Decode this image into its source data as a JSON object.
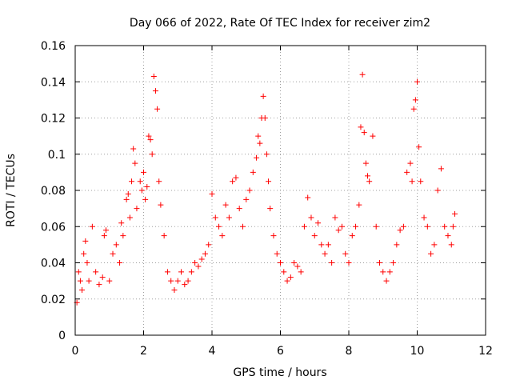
{
  "chart_data": {
    "type": "scatter",
    "title": "Day 066 of 2022, Rate Of TEC Index for receiver zim2",
    "xlabel": "GPS time / hours",
    "ylabel": "ROTI / TECUs",
    "xlim": [
      0,
      12
    ],
    "ylim": [
      0,
      0.16
    ],
    "x_ticks": [
      "0",
      "2",
      "4",
      "6",
      "8",
      "10",
      "12"
    ],
    "y_ticks": [
      "0",
      "0.02",
      "0.04",
      "0.06",
      "0.08",
      "0.1",
      "0.12",
      "0.14",
      "0.16"
    ],
    "grid": true,
    "marker": "plus",
    "color": "#ff0000",
    "series": [
      {
        "name": "ROTI",
        "x": [
          0.05,
          0.1,
          0.15,
          0.2,
          0.25,
          0.3,
          0.35,
          0.4,
          0.5,
          0.6,
          0.7,
          0.8,
          0.85,
          0.9,
          1.0,
          1.1,
          1.2,
          1.3,
          1.35,
          1.4,
          1.5,
          1.55,
          1.6,
          1.65,
          1.7,
          1.75,
          1.8,
          1.9,
          1.95,
          2.0,
          2.05,
          2.1,
          2.15,
          2.2,
          2.25,
          2.3,
          2.35,
          2.4,
          2.45,
          2.5,
          2.6,
          2.7,
          2.8,
          2.9,
          3.0,
          3.1,
          3.2,
          3.3,
          3.4,
          3.5,
          3.6,
          3.7,
          3.8,
          3.9,
          4.0,
          4.1,
          4.2,
          4.3,
          4.4,
          4.5,
          4.6,
          4.7,
          4.8,
          4.9,
          5.0,
          5.1,
          5.2,
          5.3,
          5.35,
          5.4,
          5.45,
          5.5,
          5.55,
          5.6,
          5.65,
          5.7,
          5.8,
          5.9,
          6.0,
          6.1,
          6.2,
          6.3,
          6.4,
          6.5,
          6.6,
          6.7,
          6.8,
          6.9,
          7.0,
          7.1,
          7.2,
          7.3,
          7.4,
          7.5,
          7.6,
          7.7,
          7.8,
          7.9,
          8.0,
          8.1,
          8.2,
          8.3,
          8.35,
          8.4,
          8.45,
          8.5,
          8.55,
          8.6,
          8.7,
          8.8,
          8.9,
          9.0,
          9.1,
          9.2,
          9.3,
          9.4,
          9.5,
          9.6,
          9.7,
          9.8,
          9.85,
          9.9,
          9.95,
          10.0,
          10.05,
          10.1,
          10.2,
          10.3,
          10.4,
          10.5,
          10.6,
          10.7,
          10.8,
          10.9,
          11.0,
          11.05,
          11.1
        ],
        "y": [
          0.018,
          0.035,
          0.03,
          0.025,
          0.045,
          0.052,
          0.04,
          0.03,
          0.06,
          0.035,
          0.028,
          0.032,
          0.055,
          0.058,
          0.03,
          0.045,
          0.05,
          0.04,
          0.062,
          0.055,
          0.075,
          0.078,
          0.065,
          0.085,
          0.103,
          0.095,
          0.07,
          0.085,
          0.08,
          0.09,
          0.075,
          0.082,
          0.11,
          0.108,
          0.1,
          0.143,
          0.135,
          0.125,
          0.085,
          0.072,
          0.055,
          0.035,
          0.03,
          0.025,
          0.03,
          0.035,
          0.028,
          0.03,
          0.035,
          0.04,
          0.038,
          0.042,
          0.045,
          0.05,
          0.078,
          0.065,
          0.06,
          0.055,
          0.072,
          0.065,
          0.085,
          0.087,
          0.07,
          0.06,
          0.075,
          0.08,
          0.09,
          0.098,
          0.11,
          0.106,
          0.12,
          0.132,
          0.12,
          0.1,
          0.085,
          0.07,
          0.055,
          0.045,
          0.04,
          0.035,
          0.03,
          0.032,
          0.04,
          0.038,
          0.035,
          0.06,
          0.076,
          0.065,
          0.055,
          0.062,
          0.05,
          0.045,
          0.05,
          0.04,
          0.065,
          0.058,
          0.06,
          0.045,
          0.04,
          0.055,
          0.06,
          0.072,
          0.115,
          0.144,
          0.112,
          0.095,
          0.088,
          0.085,
          0.11,
          0.06,
          0.04,
          0.035,
          0.03,
          0.035,
          0.04,
          0.05,
          0.058,
          0.06,
          0.09,
          0.095,
          0.085,
          0.125,
          0.13,
          0.14,
          0.104,
          0.085,
          0.065,
          0.06,
          0.045,
          0.05,
          0.08,
          0.092,
          0.06,
          0.055,
          0.05,
          0.06,
          0.067
        ]
      }
    ]
  }
}
